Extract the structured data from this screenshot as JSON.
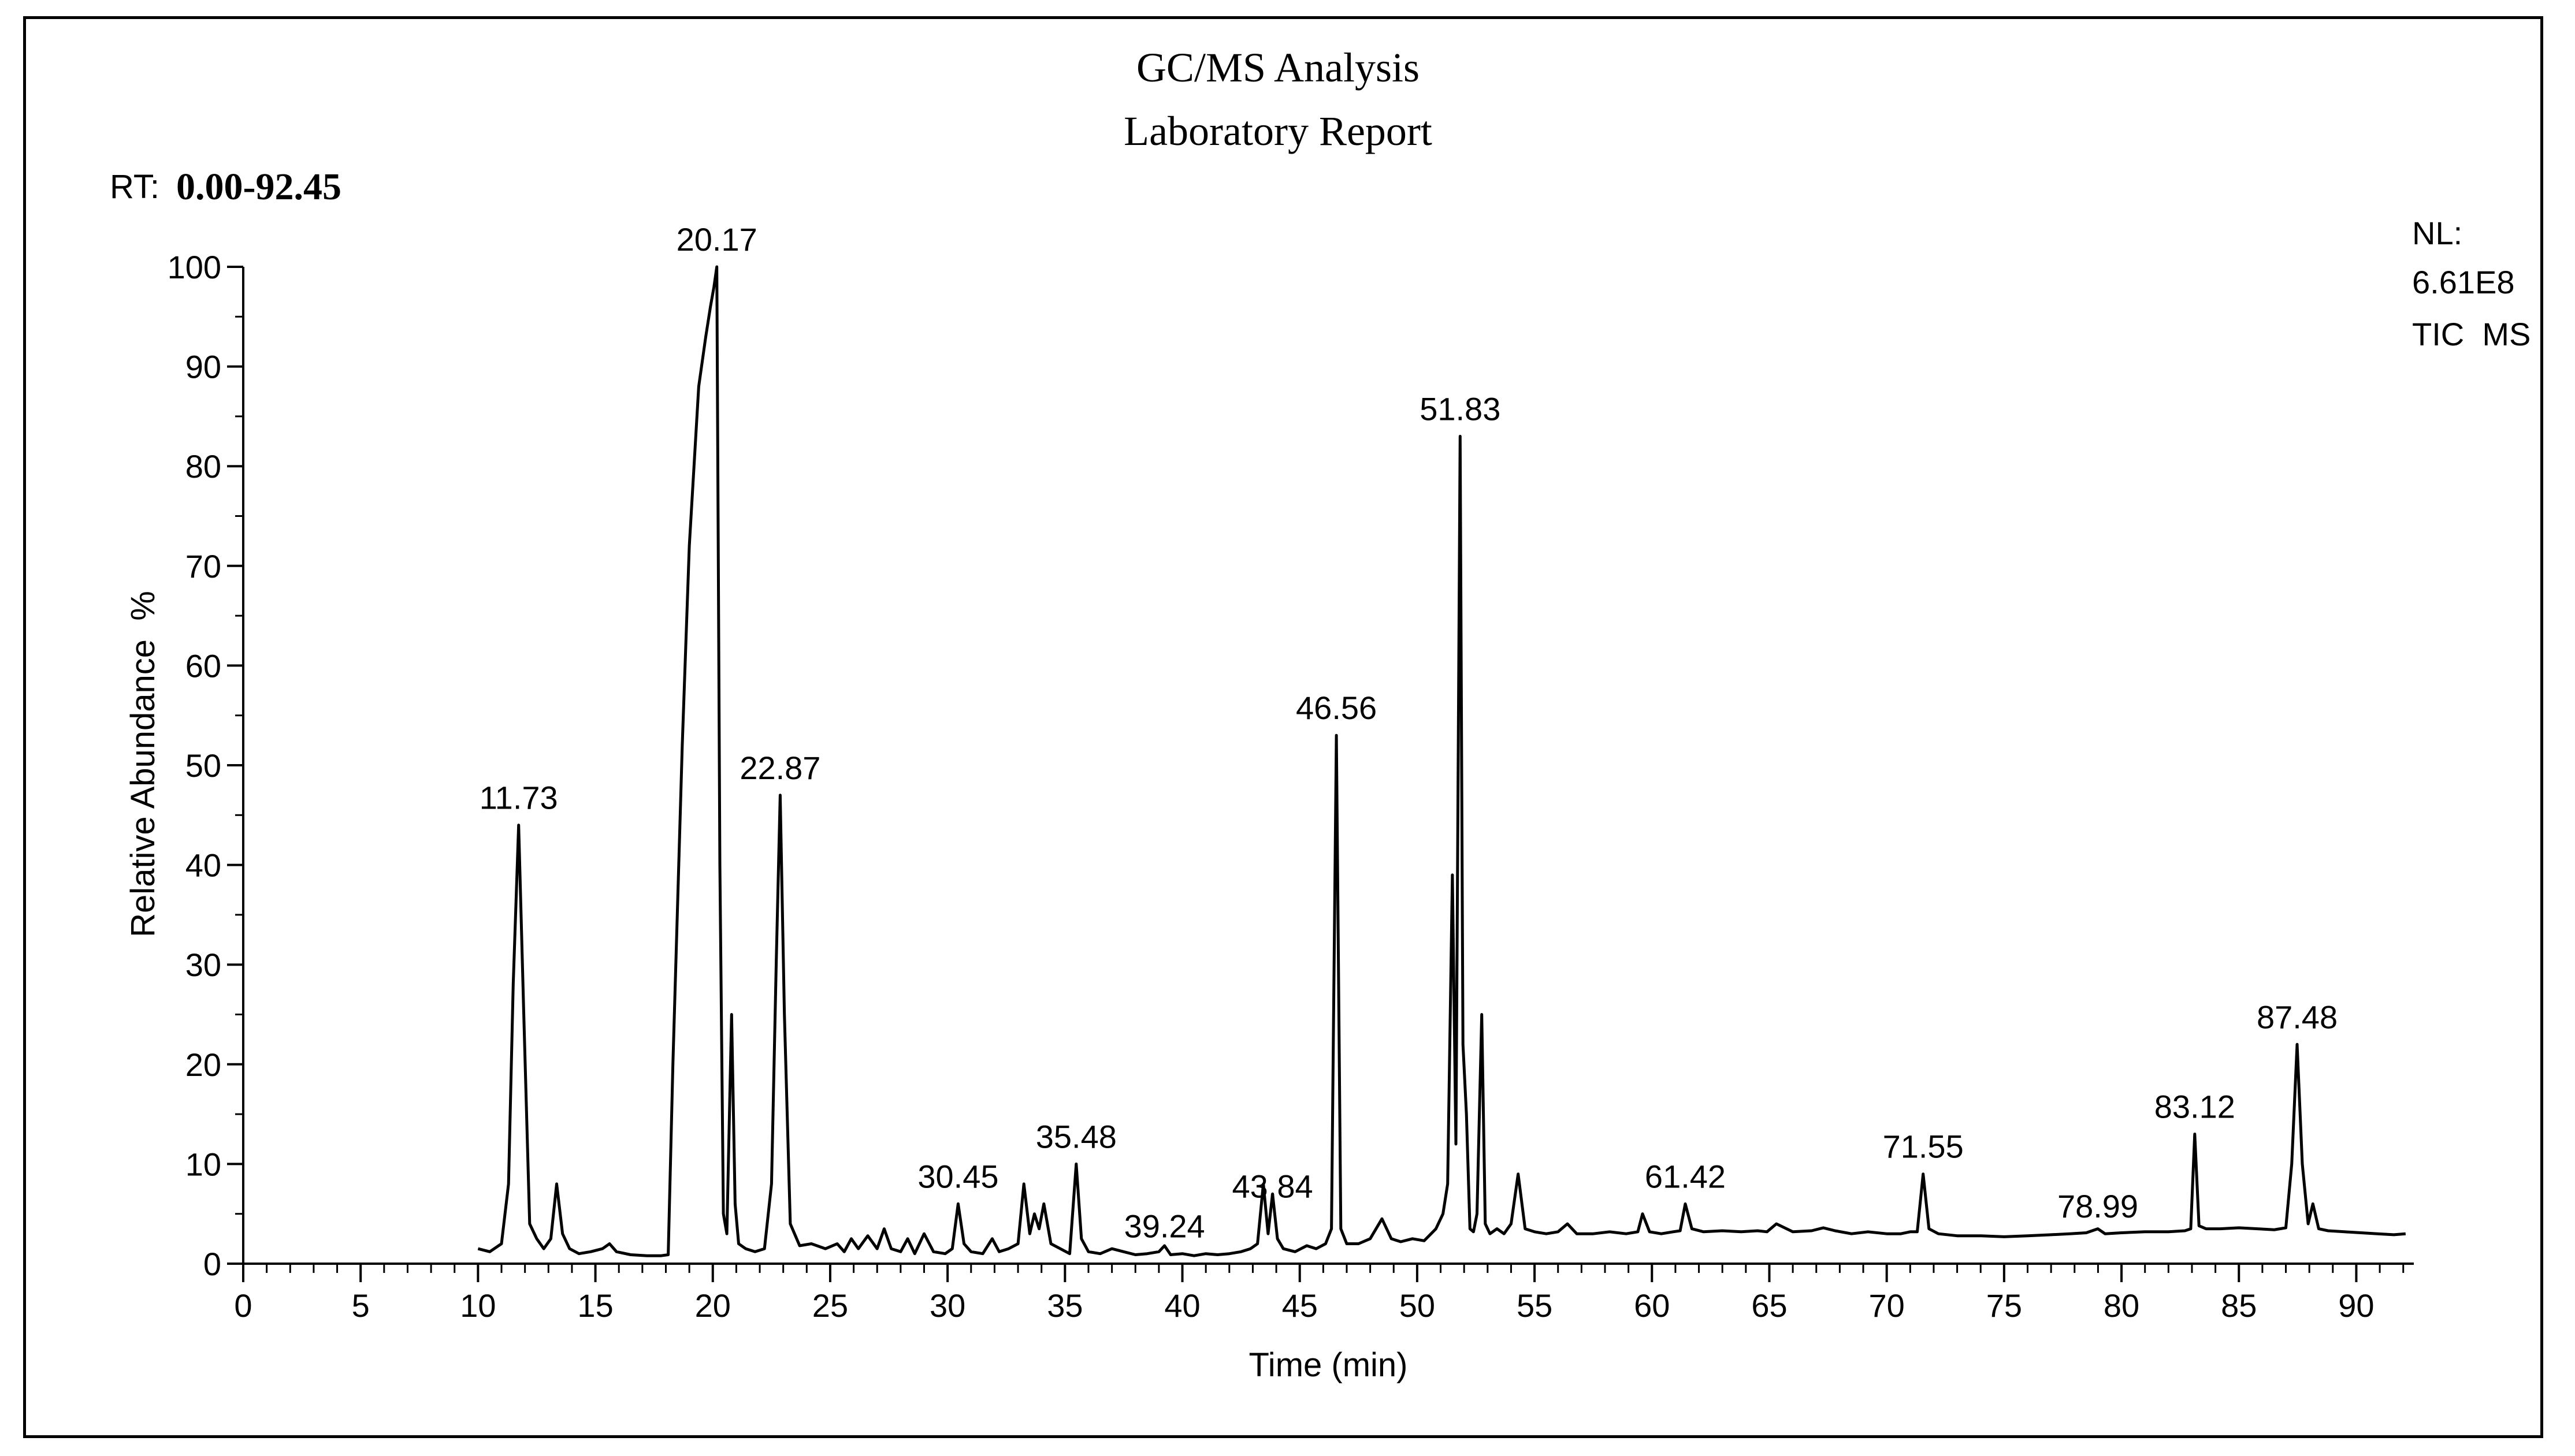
{
  "header": {
    "title": "GC/MS Analysis",
    "subtitle": "Laboratory Report",
    "rt_label": "RT:",
    "rt_range": "0.00-92.45"
  },
  "info": {
    "nl_label": "NL:",
    "nl_value": "6.61E8",
    "trace": "TIC  MS"
  },
  "chart_data": {
    "type": "line",
    "title": "GC/MS Analysis",
    "subtitle": "Laboratory Report",
    "xlabel": "Time (min)",
    "ylabel": "Relative Abundance  %",
    "xlim": [
      0,
      92.45
    ],
    "ylim": [
      0,
      100
    ],
    "xticks": [
      0,
      5,
      10,
      15,
      20,
      25,
      30,
      35,
      40,
      45,
      50,
      55,
      60,
      65,
      70,
      75,
      80,
      85,
      90
    ],
    "yticks": [
      0,
      10,
      20,
      30,
      40,
      50,
      60,
      70,
      80,
      90,
      100
    ],
    "grid": false,
    "line_color": "#000000",
    "peak_labels": [
      {
        "x": 11.73,
        "y": 44,
        "label": "11.73"
      },
      {
        "x": 20.17,
        "y": 100,
        "label": "20.17"
      },
      {
        "x": 22.87,
        "y": 47,
        "label": "22.87"
      },
      {
        "x": 30.45,
        "y": 6,
        "label": "30.45"
      },
      {
        "x": 35.48,
        "y": 10,
        "label": "35.48"
      },
      {
        "x": 39.24,
        "y": 1,
        "label": "39.24"
      },
      {
        "x": 43.84,
        "y": 5,
        "label": "43.84"
      },
      {
        "x": 46.56,
        "y": 53,
        "label": "46.56"
      },
      {
        "x": 51.83,
        "y": 83,
        "label": "51.83"
      },
      {
        "x": 61.42,
        "y": 6,
        "label": "61.42"
      },
      {
        "x": 71.55,
        "y": 9,
        "label": "71.55"
      },
      {
        "x": 78.99,
        "y": 3,
        "label": "78.99"
      },
      {
        "x": 83.12,
        "y": 13,
        "label": "83.12"
      },
      {
        "x": 87.48,
        "y": 22,
        "label": "87.48"
      }
    ],
    "series": [
      {
        "x": [
          10.0,
          10.5,
          11.0,
          11.3,
          11.5,
          11.73,
          11.95,
          12.2,
          12.5,
          12.8,
          13.1,
          13.35,
          13.6,
          13.9,
          14.3,
          14.8,
          15.3,
          15.6,
          15.9,
          16.5,
          17.2,
          17.8,
          18.1,
          18.3,
          18.7,
          19.0,
          19.4,
          19.7,
          19.9,
          20.05,
          20.17,
          20.3,
          20.45,
          20.6,
          20.8,
          20.95,
          21.1,
          21.4,
          21.8,
          22.2,
          22.5,
          22.7,
          22.87,
          23.05,
          23.3,
          23.7,
          24.2,
          24.8,
          25.3,
          25.6,
          25.9,
          26.2,
          26.6,
          27.0,
          27.3,
          27.6,
          28.0,
          28.3,
          28.6,
          29.0,
          29.4,
          29.9,
          30.2,
          30.45,
          30.7,
          31.0,
          31.5,
          31.9,
          32.2,
          32.6,
          33.0,
          33.25,
          33.5,
          33.7,
          33.9,
          34.1,
          34.4,
          34.8,
          35.2,
          35.48,
          35.7,
          36.0,
          36.5,
          37.0,
          37.5,
          38.0,
          38.5,
          39.0,
          39.24,
          39.5,
          40.0,
          40.5,
          41.0,
          41.5,
          42.0,
          42.5,
          42.9,
          43.2,
          43.45,
          43.65,
          43.84,
          44.05,
          44.3,
          44.8,
          45.3,
          45.7,
          46.1,
          46.35,
          46.56,
          46.75,
          47.0,
          47.5,
          48.0,
          48.5,
          48.9,
          49.3,
          49.8,
          50.3,
          50.8,
          51.1,
          51.3,
          51.5,
          51.65,
          51.83,
          51.95,
          52.1,
          52.25,
          52.4,
          52.55,
          52.75,
          52.9,
          53.1,
          53.4,
          53.7,
          54.0,
          54.3,
          54.6,
          55.0,
          55.5,
          56.0,
          56.4,
          56.8,
          57.5,
          58.2,
          58.9,
          59.4,
          59.6,
          59.9,
          60.4,
          60.9,
          61.2,
          61.42,
          61.7,
          62.2,
          63.0,
          63.8,
          64.5,
          64.9,
          65.3,
          66.0,
          66.8,
          67.3,
          67.8,
          68.5,
          69.2,
          70.0,
          70.6,
          71.0,
          71.3,
          71.55,
          71.8,
          72.2,
          73.0,
          74.0,
          75.0,
          76.0,
          77.0,
          77.8,
          78.5,
          78.99,
          79.3,
          80.0,
          81.0,
          82.0,
          82.7,
          82.95,
          83.12,
          83.3,
          83.6,
          84.2,
          85.0,
          85.8,
          86.5,
          87.0,
          87.25,
          87.48,
          87.7,
          87.95,
          88.15,
          88.4,
          88.8,
          89.5,
          90.2,
          90.9,
          91.6,
          92.1
        ],
        "y": [
          1.5,
          1.2,
          2.0,
          8.0,
          28.0,
          44.0,
          25.0,
          4.0,
          2.5,
          1.5,
          2.5,
          8.0,
          3.0,
          1.5,
          1.0,
          1.2,
          1.5,
          2.0,
          1.2,
          0.9,
          0.8,
          0.8,
          0.9,
          20.0,
          52.0,
          72.0,
          88.0,
          93.0,
          96.0,
          98.0,
          100.0,
          40.0,
          5.0,
          3.0,
          25.0,
          6.0,
          2.0,
          1.5,
          1.2,
          1.5,
          8.0,
          30.0,
          47.0,
          25.0,
          4.0,
          1.8,
          2.0,
          1.5,
          2.0,
          1.2,
          2.5,
          1.5,
          2.8,
          1.5,
          3.5,
          1.5,
          1.2,
          2.5,
          1.0,
          3.0,
          1.2,
          1.0,
          1.5,
          6.0,
          2.0,
          1.2,
          1.0,
          2.5,
          1.2,
          1.5,
          2.0,
          8.0,
          3.0,
          5.0,
          3.5,
          6.0,
          2.0,
          1.5,
          1.0,
          10.0,
          2.5,
          1.2,
          1.0,
          1.5,
          1.2,
          0.9,
          1.0,
          1.2,
          1.8,
          0.9,
          1.0,
          0.8,
          1.0,
          0.9,
          1.0,
          1.2,
          1.5,
          2.0,
          8.0,
          3.0,
          7.0,
          2.5,
          1.5,
          1.2,
          1.8,
          1.5,
          2.0,
          3.5,
          53.0,
          3.5,
          2.0,
          2.0,
          2.5,
          4.5,
          2.5,
          2.2,
          2.5,
          2.3,
          3.5,
          5.0,
          8.0,
          39.0,
          12.0,
          83.0,
          22.0,
          15.0,
          3.5,
          3.2,
          5.0,
          25.0,
          4.0,
          3.0,
          3.5,
          3.0,
          4.0,
          9.0,
          3.5,
          3.2,
          3.0,
          3.2,
          4.0,
          3.0,
          3.0,
          3.2,
          3.0,
          3.2,
          5.0,
          3.2,
          3.0,
          3.2,
          3.3,
          6.0,
          3.5,
          3.2,
          3.3,
          3.2,
          3.3,
          3.2,
          4.0,
          3.2,
          3.3,
          3.6,
          3.3,
          3.0,
          3.2,
          3.0,
          3.0,
          3.2,
          3.2,
          9.0,
          3.5,
          3.0,
          2.8,
          2.8,
          2.7,
          2.8,
          2.9,
          3.0,
          3.1,
          3.5,
          3.0,
          3.1,
          3.2,
          3.2,
          3.3,
          3.5,
          13.0,
          3.8,
          3.5,
          3.5,
          3.6,
          3.5,
          3.4,
          3.6,
          10.0,
          22.0,
          10.0,
          4.0,
          6.0,
          3.5,
          3.3,
          3.2,
          3.1,
          3.0,
          2.9,
          3.0
        ]
      }
    ]
  }
}
